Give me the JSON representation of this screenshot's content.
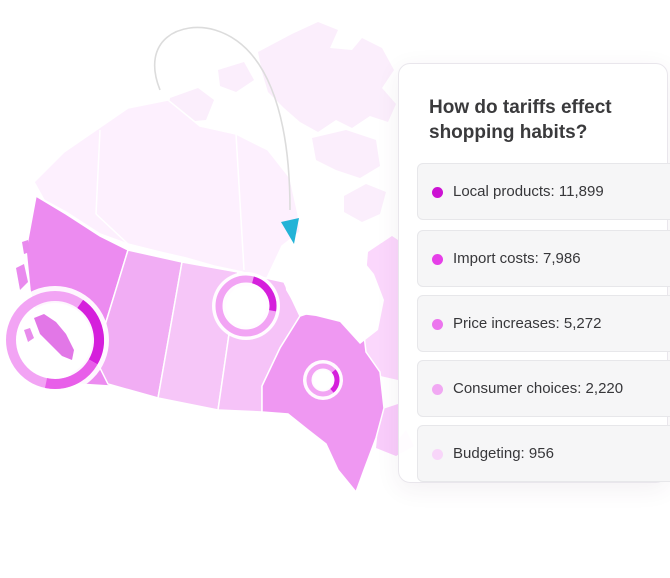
{
  "panel": {
    "title": "How do tariffs effect shopping habits?"
  },
  "chart_data": {
    "type": "pie",
    "categories": [
      "Local products",
      "Import costs",
      "Price increases",
      "Consumer choices",
      "Budgeting"
    ],
    "values": [
      11899,
      7986,
      5272,
      2220,
      956
    ],
    "items": [
      {
        "label": "Local products: 11,899",
        "color": "#cc12d3"
      },
      {
        "label": "Import costs: 7,986",
        "color": "#e63fe8"
      },
      {
        "label": "Price increases: 5,272",
        "color": "#ec75ee"
      },
      {
        "label": "Consumer choices: 2,220",
        "color": "#f1a8f3"
      },
      {
        "label": "Budgeting: 956",
        "color": "#f8d6f9"
      }
    ],
    "colors": {
      "accent_arrow": "#23b3d7",
      "ring_dark": "#d51fdc",
      "ring_light": "#f2a4f4"
    }
  }
}
